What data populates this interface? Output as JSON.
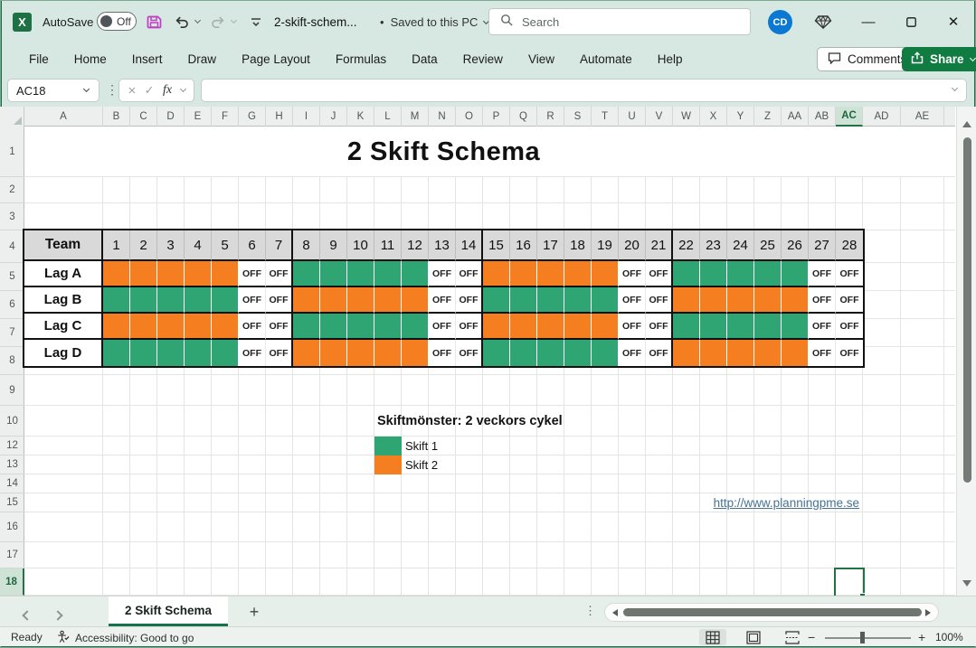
{
  "titlebar": {
    "autosave_label": "AutoSave",
    "autosave_state": "Off",
    "filename": "2-skift-schem...",
    "separator": "•",
    "saved_status": "Saved to this PC",
    "search_placeholder": "Search",
    "avatar_initials": "CD",
    "minimize": "—",
    "maximize": "☐",
    "close": "✕"
  },
  "ribbon": {
    "tabs": [
      "File",
      "Home",
      "Insert",
      "Draw",
      "Page Layout",
      "Formulas",
      "Data",
      "Review",
      "View",
      "Automate",
      "Help"
    ],
    "comments_label": "Comments",
    "share_label": "Share"
  },
  "formula_bar": {
    "name_box": "AC18",
    "fx_label": "fx",
    "formula": ""
  },
  "grid": {
    "columns": [
      "A",
      "B",
      "C",
      "D",
      "E",
      "F",
      "G",
      "H",
      "I",
      "J",
      "K",
      "L",
      "M",
      "N",
      "O",
      "P",
      "Q",
      "R",
      "S",
      "T",
      "U",
      "V",
      "W",
      "X",
      "Y",
      "Z",
      "AA",
      "AB",
      "AC",
      "AD",
      "AE"
    ],
    "selected_column": "AC",
    "rows": [
      1,
      2,
      3,
      4,
      5,
      6,
      7,
      8,
      9,
      10,
      12,
      13,
      14,
      15,
      16,
      17,
      18
    ],
    "selected_row": 18,
    "selected_cell": "AC18"
  },
  "sheet": {
    "title": "2 Skift Schema",
    "schedule": {
      "header_team": "Team",
      "days": [
        1,
        2,
        3,
        4,
        5,
        6,
        7,
        8,
        9,
        10,
        11,
        12,
        13,
        14,
        15,
        16,
        17,
        18,
        19,
        20,
        21,
        22,
        23,
        24,
        25,
        26,
        27,
        28
      ],
      "week_ends": [
        7,
        14,
        21
      ],
      "off_label": "OFF",
      "teams": [
        {
          "name": "Lag A",
          "pattern": [
            "S2",
            "S2",
            "S2",
            "S2",
            "S2",
            "OFF",
            "OFF",
            "S1",
            "S1",
            "S1",
            "S1",
            "S1",
            "OFF",
            "OFF",
            "S2",
            "S2",
            "S2",
            "S2",
            "S2",
            "OFF",
            "OFF",
            "S1",
            "S1",
            "S1",
            "S1",
            "S1",
            "OFF",
            "OFF"
          ]
        },
        {
          "name": "Lag B",
          "pattern": [
            "S1",
            "S1",
            "S1",
            "S1",
            "S1",
            "OFF",
            "OFF",
            "S2",
            "S2",
            "S2",
            "S2",
            "S2",
            "OFF",
            "OFF",
            "S1",
            "S1",
            "S1",
            "S1",
            "S1",
            "OFF",
            "OFF",
            "S2",
            "S2",
            "S2",
            "S2",
            "S2",
            "OFF",
            "OFF"
          ]
        },
        {
          "name": "Lag C",
          "pattern": [
            "S2",
            "S2",
            "S2",
            "S2",
            "S2",
            "OFF",
            "OFF",
            "S1",
            "S1",
            "S1",
            "S1",
            "S1",
            "OFF",
            "OFF",
            "S2",
            "S2",
            "S2",
            "S2",
            "S2",
            "OFF",
            "OFF",
            "S1",
            "S1",
            "S1",
            "S1",
            "S1",
            "OFF",
            "OFF"
          ]
        },
        {
          "name": "Lag D",
          "pattern": [
            "S1",
            "S1",
            "S1",
            "S1",
            "S1",
            "OFF",
            "OFF",
            "S2",
            "S2",
            "S2",
            "S2",
            "S2",
            "OFF",
            "OFF",
            "S1",
            "S1",
            "S1",
            "S1",
            "S1",
            "OFF",
            "OFF",
            "S2",
            "S2",
            "S2",
            "S2",
            "S2",
            "OFF",
            "OFF"
          ]
        }
      ]
    },
    "legend": {
      "title": "Skiftmönster: 2 veckors cykel",
      "items": [
        {
          "key": "S1",
          "label": "Skift 1",
          "color": "#2EA572"
        },
        {
          "key": "S2",
          "label": "Skift 2",
          "color": "#F57E20"
        }
      ]
    },
    "link": "http://www.planningpme.se"
  },
  "tabs_bar": {
    "sheet_tab": "2 Skift Schema",
    "add_sheet": "+"
  },
  "status_bar": {
    "ready": "Ready",
    "accessibility": "Accessibility: Good to go",
    "zoom_level": "100%"
  },
  "colors": {
    "shift1_green": "#2EA572",
    "shift2_orange": "#F57E20",
    "table_header_fill": "#D9D9D9",
    "selection_green": "#217346",
    "share_button_green": "#107C41",
    "avatar_blue": "#0B79D1",
    "save_icon_magenta": "#BE3FC3",
    "hyperlink": "#467394"
  }
}
